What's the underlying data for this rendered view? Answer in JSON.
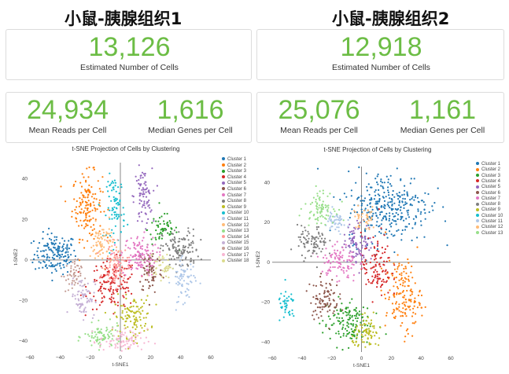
{
  "colors": {
    "accent_green": "#6cbd45",
    "clusters": [
      "#1f77b4",
      "#ff7f0e",
      "#2ca02c",
      "#d62728",
      "#9467bd",
      "#8c564b",
      "#e377c2",
      "#7f7f7f",
      "#bcbd22",
      "#17becf",
      "#aec7e8",
      "#ffbb78",
      "#98df8a",
      "#ff9896",
      "#c5b0d5",
      "#c49c94",
      "#f7b6d2",
      "#dbdb8d"
    ]
  },
  "panels": [
    {
      "title": "小鼠-胰腺组织1",
      "cells": {
        "value": "13,126",
        "label": "Estimated Number of Cells"
      },
      "reads": {
        "value": "24,934",
        "label": "Mean Reads per Cell"
      },
      "genes": {
        "value": "1,616",
        "label": "Median Genes per Cell"
      },
      "plot": {
        "title": "t-SNE Projection of Cells by Clustering",
        "xlabel": "t-SNE1",
        "ylabel": "t-SNE2",
        "legend": [
          "Cluster 1",
          "Cluster 2",
          "Cluster 3",
          "Cluster 4",
          "Cluster 5",
          "Cluster 6",
          "Cluster 7",
          "Cluster 8",
          "Cluster 9",
          "Cluster 10",
          "Cluster 11",
          "Cluster 12",
          "Cluster 13",
          "Cluster 14",
          "Cluster 15",
          "Cluster 16",
          "Cluster 17",
          "Cluster 18"
        ],
        "x_ticks": [
          "−60",
          "−40",
          "−20",
          "0",
          "20",
          "40",
          "60"
        ],
        "y_ticks": [
          "40",
          "20",
          "0",
          "−20",
          "−40"
        ]
      }
    },
    {
      "title": "小鼠-胰腺组织2",
      "cells": {
        "value": "12,918",
        "label": "Estimated Number of Cells"
      },
      "reads": {
        "value": "25,076",
        "label": "Mean Reads per Cell"
      },
      "genes": {
        "value": "1,161",
        "label": "Median Genes per Cell"
      },
      "plot": {
        "title": "t-SNE Projection of Cells by Clustering",
        "xlabel": "t-SNE1",
        "ylabel": "t-SNE2",
        "legend": [
          "Cluster 1",
          "Cluster 2",
          "Cluster 3",
          "Cluster 4",
          "Cluster 5",
          "Cluster 6",
          "Cluster 7",
          "Cluster 8",
          "Cluster 9",
          "Cluster 10",
          "Cluster 11",
          "Cluster 12",
          "Cluster 13"
        ],
        "x_ticks": [
          "−60",
          "−40",
          "−20",
          "0",
          "20",
          "40",
          "60"
        ],
        "y_ticks": [
          "40",
          "20",
          "0",
          "−20",
          "−40"
        ]
      }
    }
  ],
  "chart_data": [
    {
      "type": "scatter",
      "title": "t-SNE Projection of Cells by Clustering",
      "xlabel": "t-SNE1",
      "ylabel": "t-SNE2",
      "xlim": [
        -60,
        60
      ],
      "ylim": [
        -45,
        48
      ],
      "legend_position": "right",
      "clusters": [
        {
          "name": "Cluster 1",
          "cx": -43,
          "cy": 3,
          "sx": 7,
          "sy": 5,
          "n": 160
        },
        {
          "name": "Cluster 2",
          "cx": -22,
          "cy": 27,
          "sx": 5,
          "sy": 8,
          "n": 150
        },
        {
          "name": "Cluster 3",
          "cx": 28,
          "cy": 15,
          "sx": 5,
          "sy": 4,
          "n": 60
        },
        {
          "name": "Cluster 4",
          "cx": -5,
          "cy": -12,
          "sx": 8,
          "sy": 6,
          "n": 150
        },
        {
          "name": "Cluster 5",
          "cx": 15,
          "cy": 31,
          "sx": 3,
          "sy": 7,
          "n": 80
        },
        {
          "name": "Cluster 6",
          "cx": 20,
          "cy": -5,
          "sx": 4,
          "sy": 6,
          "n": 70
        },
        {
          "name": "Cluster 7",
          "cx": 12,
          "cy": 2,
          "sx": 6,
          "sy": 5,
          "n": 120
        },
        {
          "name": "Cluster 8",
          "cx": 40,
          "cy": 5,
          "sx": 6,
          "sy": 5,
          "n": 120
        },
        {
          "name": "Cluster 9",
          "cx": 8,
          "cy": -28,
          "sx": 6,
          "sy": 5,
          "n": 110
        },
        {
          "name": "Cluster 10",
          "cx": -3,
          "cy": 26,
          "sx": 3,
          "sy": 8,
          "n": 80
        },
        {
          "name": "Cluster 11",
          "cx": 42,
          "cy": -10,
          "sx": 4,
          "sy": 5,
          "n": 70
        },
        {
          "name": "Cluster 12",
          "cx": -12,
          "cy": 8,
          "sx": 4,
          "sy": 5,
          "n": 80
        },
        {
          "name": "Cluster 13",
          "cx": -12,
          "cy": -38,
          "sx": 6,
          "sy": 3,
          "n": 80
        },
        {
          "name": "Cluster 14",
          "cx": -3,
          "cy": -3,
          "sx": 4,
          "sy": 5,
          "n": 90
        },
        {
          "name": "Cluster 15",
          "cx": -25,
          "cy": -18,
          "sx": 4,
          "sy": 5,
          "n": 70
        },
        {
          "name": "Cluster 16",
          "cx": -32,
          "cy": -8,
          "sx": 3,
          "sy": 4,
          "n": 50
        },
        {
          "name": "Cluster 17",
          "cx": 2,
          "cy": -40,
          "sx": 8,
          "sy": 3,
          "n": 80
        },
        {
          "name": "Cluster 18",
          "cx": 28,
          "cy": -3,
          "sx": 3,
          "sy": 3,
          "n": 40
        }
      ]
    },
    {
      "type": "scatter",
      "title": "t-SNE Projection of Cells by Clustering",
      "xlabel": "t-SNE1",
      "ylabel": "t-SNE2",
      "xlim": [
        -60,
        60
      ],
      "ylim": [
        -45,
        48
      ],
      "legend_position": "right",
      "clusters": [
        {
          "name": "Cluster 1",
          "cx": 18,
          "cy": 28,
          "sx": 14,
          "sy": 9,
          "n": 320
        },
        {
          "name": "Cluster 2",
          "cx": 28,
          "cy": -17,
          "sx": 6,
          "sy": 9,
          "n": 160
        },
        {
          "name": "Cluster 3",
          "cx": -10,
          "cy": -30,
          "sx": 8,
          "sy": 6,
          "n": 140
        },
        {
          "name": "Cluster 4",
          "cx": 10,
          "cy": -2,
          "sx": 5,
          "sy": 8,
          "n": 110
        },
        {
          "name": "Cluster 5",
          "cx": -2,
          "cy": 10,
          "sx": 5,
          "sy": 5,
          "n": 90
        },
        {
          "name": "Cluster 6",
          "cx": -25,
          "cy": -18,
          "sx": 5,
          "sy": 5,
          "n": 90
        },
        {
          "name": "Cluster 7",
          "cx": -15,
          "cy": 0,
          "sx": 6,
          "sy": 5,
          "n": 100
        },
        {
          "name": "Cluster 8",
          "cx": -33,
          "cy": 10,
          "sx": 5,
          "sy": 4,
          "n": 90
        },
        {
          "name": "Cluster 9",
          "cx": 4,
          "cy": -36,
          "sx": 5,
          "sy": 4,
          "n": 80
        },
        {
          "name": "Cluster 10",
          "cx": -50,
          "cy": -22,
          "sx": 3,
          "sy": 4,
          "n": 40
        },
        {
          "name": "Cluster 11",
          "cx": -18,
          "cy": 20,
          "sx": 4,
          "sy": 3,
          "n": 50
        },
        {
          "name": "Cluster 12",
          "cx": 2,
          "cy": 22,
          "sx": 4,
          "sy": 3,
          "n": 40
        },
        {
          "name": "Cluster 13",
          "cx": -28,
          "cy": 28,
          "sx": 5,
          "sy": 4,
          "n": 80
        }
      ]
    }
  ]
}
